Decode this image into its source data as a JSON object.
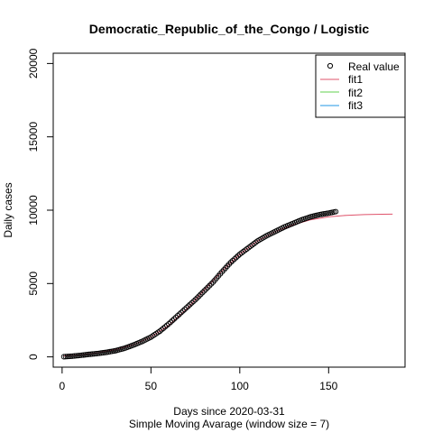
{
  "chart_data": {
    "type": "scatter",
    "title": "Democratic_Republic_of_the_Congo / Logistic",
    "xlabel": "Days since 2020-03-31",
    "subtitle": "Simple Moving Avarage (window size = 7)",
    "ylabel": "Daily cases",
    "xlim": [
      -5,
      193
    ],
    "ylim": [
      -700,
      20700
    ],
    "x_ticks": [
      0,
      50,
      100,
      150
    ],
    "y_ticks": [
      0,
      5000,
      10000,
      15000,
      20000
    ],
    "grid": false,
    "legend_position": "top-right",
    "legend": [
      {
        "label": "Real value",
        "marker": "circle",
        "color": "#000000"
      },
      {
        "label": "fit1",
        "marker": "line",
        "color": "#DF536B"
      },
      {
        "label": "fit2",
        "marker": "line",
        "color": "#61D04F"
      },
      {
        "label": "fit3",
        "marker": "line",
        "color": "#2297E6"
      }
    ],
    "real_value": {
      "x_start": 1,
      "x_end": 154,
      "anchors": [
        [
          1,
          10
        ],
        [
          5,
          40
        ],
        [
          10,
          100
        ],
        [
          15,
          170
        ],
        [
          20,
          230
        ],
        [
          25,
          310
        ],
        [
          30,
          420
        ],
        [
          35,
          580
        ],
        [
          40,
          800
        ],
        [
          45,
          1050
        ],
        [
          50,
          1350
        ],
        [
          55,
          1750
        ],
        [
          60,
          2250
        ],
        [
          65,
          2800
        ],
        [
          70,
          3350
        ],
        [
          75,
          3900
        ],
        [
          80,
          4500
        ],
        [
          85,
          5100
        ],
        [
          90,
          5800
        ],
        [
          95,
          6450
        ],
        [
          100,
          7000
        ],
        [
          105,
          7450
        ],
        [
          110,
          7900
        ],
        [
          115,
          8250
        ],
        [
          120,
          8550
        ],
        [
          125,
          8850
        ],
        [
          130,
          9100
        ],
        [
          135,
          9350
        ],
        [
          140,
          9550
        ],
        [
          145,
          9700
        ],
        [
          150,
          9800
        ],
        [
          154,
          9900
        ]
      ]
    },
    "fit1": {
      "points": [
        [
          1,
          60
        ],
        [
          10,
          140
        ],
        [
          20,
          280
        ],
        [
          30,
          500
        ],
        [
          40,
          820
        ],
        [
          50,
          1350
        ],
        [
          60,
          2150
        ],
        [
          70,
          3250
        ],
        [
          80,
          4550
        ],
        [
          90,
          5850
        ],
        [
          100,
          7000
        ],
        [
          110,
          7900
        ],
        [
          120,
          8550
        ],
        [
          130,
          9000
        ],
        [
          140,
          9350
        ],
        [
          150,
          9550
        ],
        [
          160,
          9650
        ],
        [
          170,
          9700
        ],
        [
          180,
          9720
        ],
        [
          186,
          9730
        ]
      ]
    }
  }
}
